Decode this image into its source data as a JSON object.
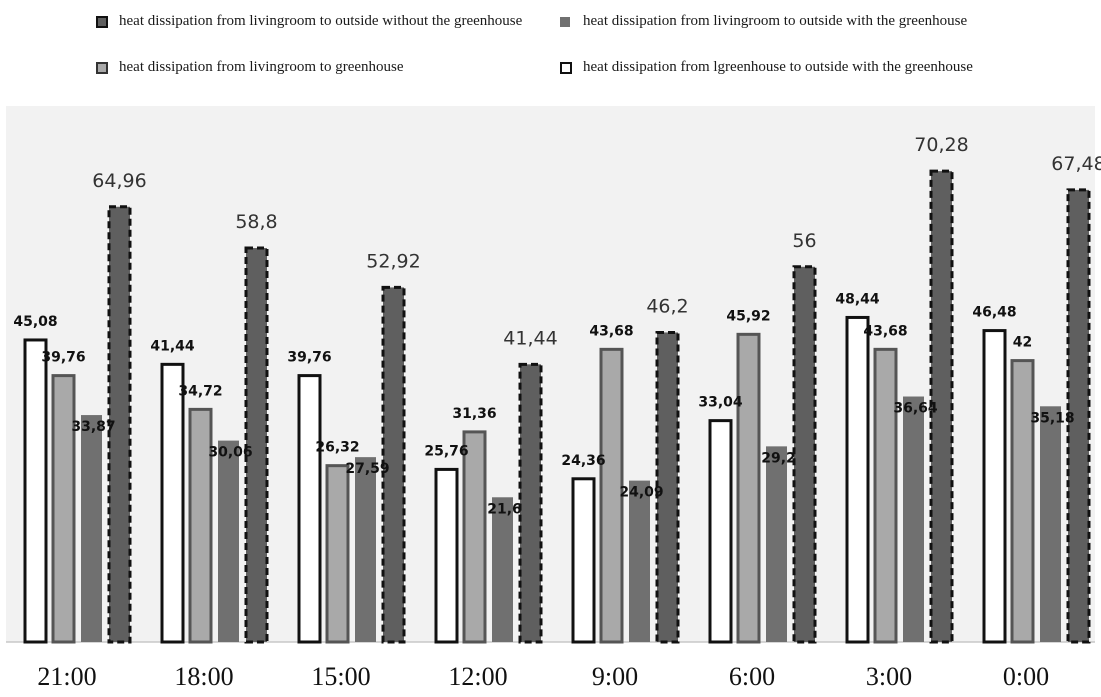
{
  "colors": {
    "white_bar_fill": "#ffffff",
    "light_bar_fill": "#a9a9a9",
    "mid_bar_fill": "#707070",
    "dark_bar_fill": "#5f5f5f",
    "bar_stroke": "#111111",
    "chart_background": "#f2f2f2",
    "axis_line": "#c8c8c8"
  },
  "legend": [
    {
      "label": "heat dissipation from livingroom to outside without the greenhouse",
      "series": "without_greenhouse",
      "icon": "dashed-dark-square"
    },
    {
      "label": "heat dissipation from livingroom to outside with the greenhouse",
      "series": "livingroom_outside_with",
      "icon": "plain-dark-square"
    },
    {
      "label": "heat dissipation from livingroom to greenhouse",
      "series": "livingroom_to_greenhouse",
      "icon": "outlined-gray-square"
    },
    {
      "label": "heat dissipation from lgreenhouse  to outside with the greenhouse",
      "series": "greenhouse_outside_with",
      "icon": "white-square"
    }
  ],
  "chart_data": {
    "type": "bar",
    "title": "",
    "xlabel": "",
    "ylabel": "",
    "ylim": [
      0,
      80
    ],
    "grid": false,
    "legend_position": "top",
    "categories": [
      "21:00",
      "18:00",
      "15:00",
      "12:00",
      "9:00",
      "6:00",
      "3:00",
      "0:00"
    ],
    "series": [
      {
        "name": "heat dissipation from lgreenhouse  to outside with the greenhouse",
        "key": "greenhouse_outside_with",
        "values": [
          45.08,
          41.44,
          39.76,
          25.76,
          24.36,
          33.04,
          48.44,
          46.48
        ],
        "labels": [
          "45,08",
          "41,44",
          "39,76",
          "25,76",
          "24,36",
          "33,04",
          "48,44",
          "46,48"
        ]
      },
      {
        "name": "heat dissipation from livingroom to greenhouse",
        "key": "livingroom_to_greenhouse",
        "values": [
          39.76,
          34.72,
          26.32,
          31.36,
          43.68,
          45.92,
          43.68,
          42
        ],
        "labels": [
          "39,76",
          "34,72",
          "26,32",
          "31,36",
          "43,68",
          "45,92",
          "43,68",
          "42"
        ]
      },
      {
        "name": "heat dissipation from livingroom to outside with the greenhouse",
        "key": "livingroom_outside_with",
        "values": [
          33.87,
          30.06,
          27.59,
          21.6,
          24.09,
          29.2,
          36.64,
          35.18
        ],
        "labels": [
          "33,87",
          "30,06",
          "27,59",
          "21,6",
          "24,09",
          "29,2",
          "36,64",
          "35,18"
        ]
      },
      {
        "name": "heat dissipation from livingroom to outside without the greenhouse",
        "key": "without_greenhouse",
        "values": [
          64.96,
          58.8,
          52.92,
          41.44,
          46.2,
          56,
          70.28,
          67.48
        ],
        "labels": [
          "64,96",
          "58,8",
          "52,92",
          "41,44",
          "46,2",
          "56",
          "70,28",
          "67,48"
        ]
      }
    ]
  }
}
